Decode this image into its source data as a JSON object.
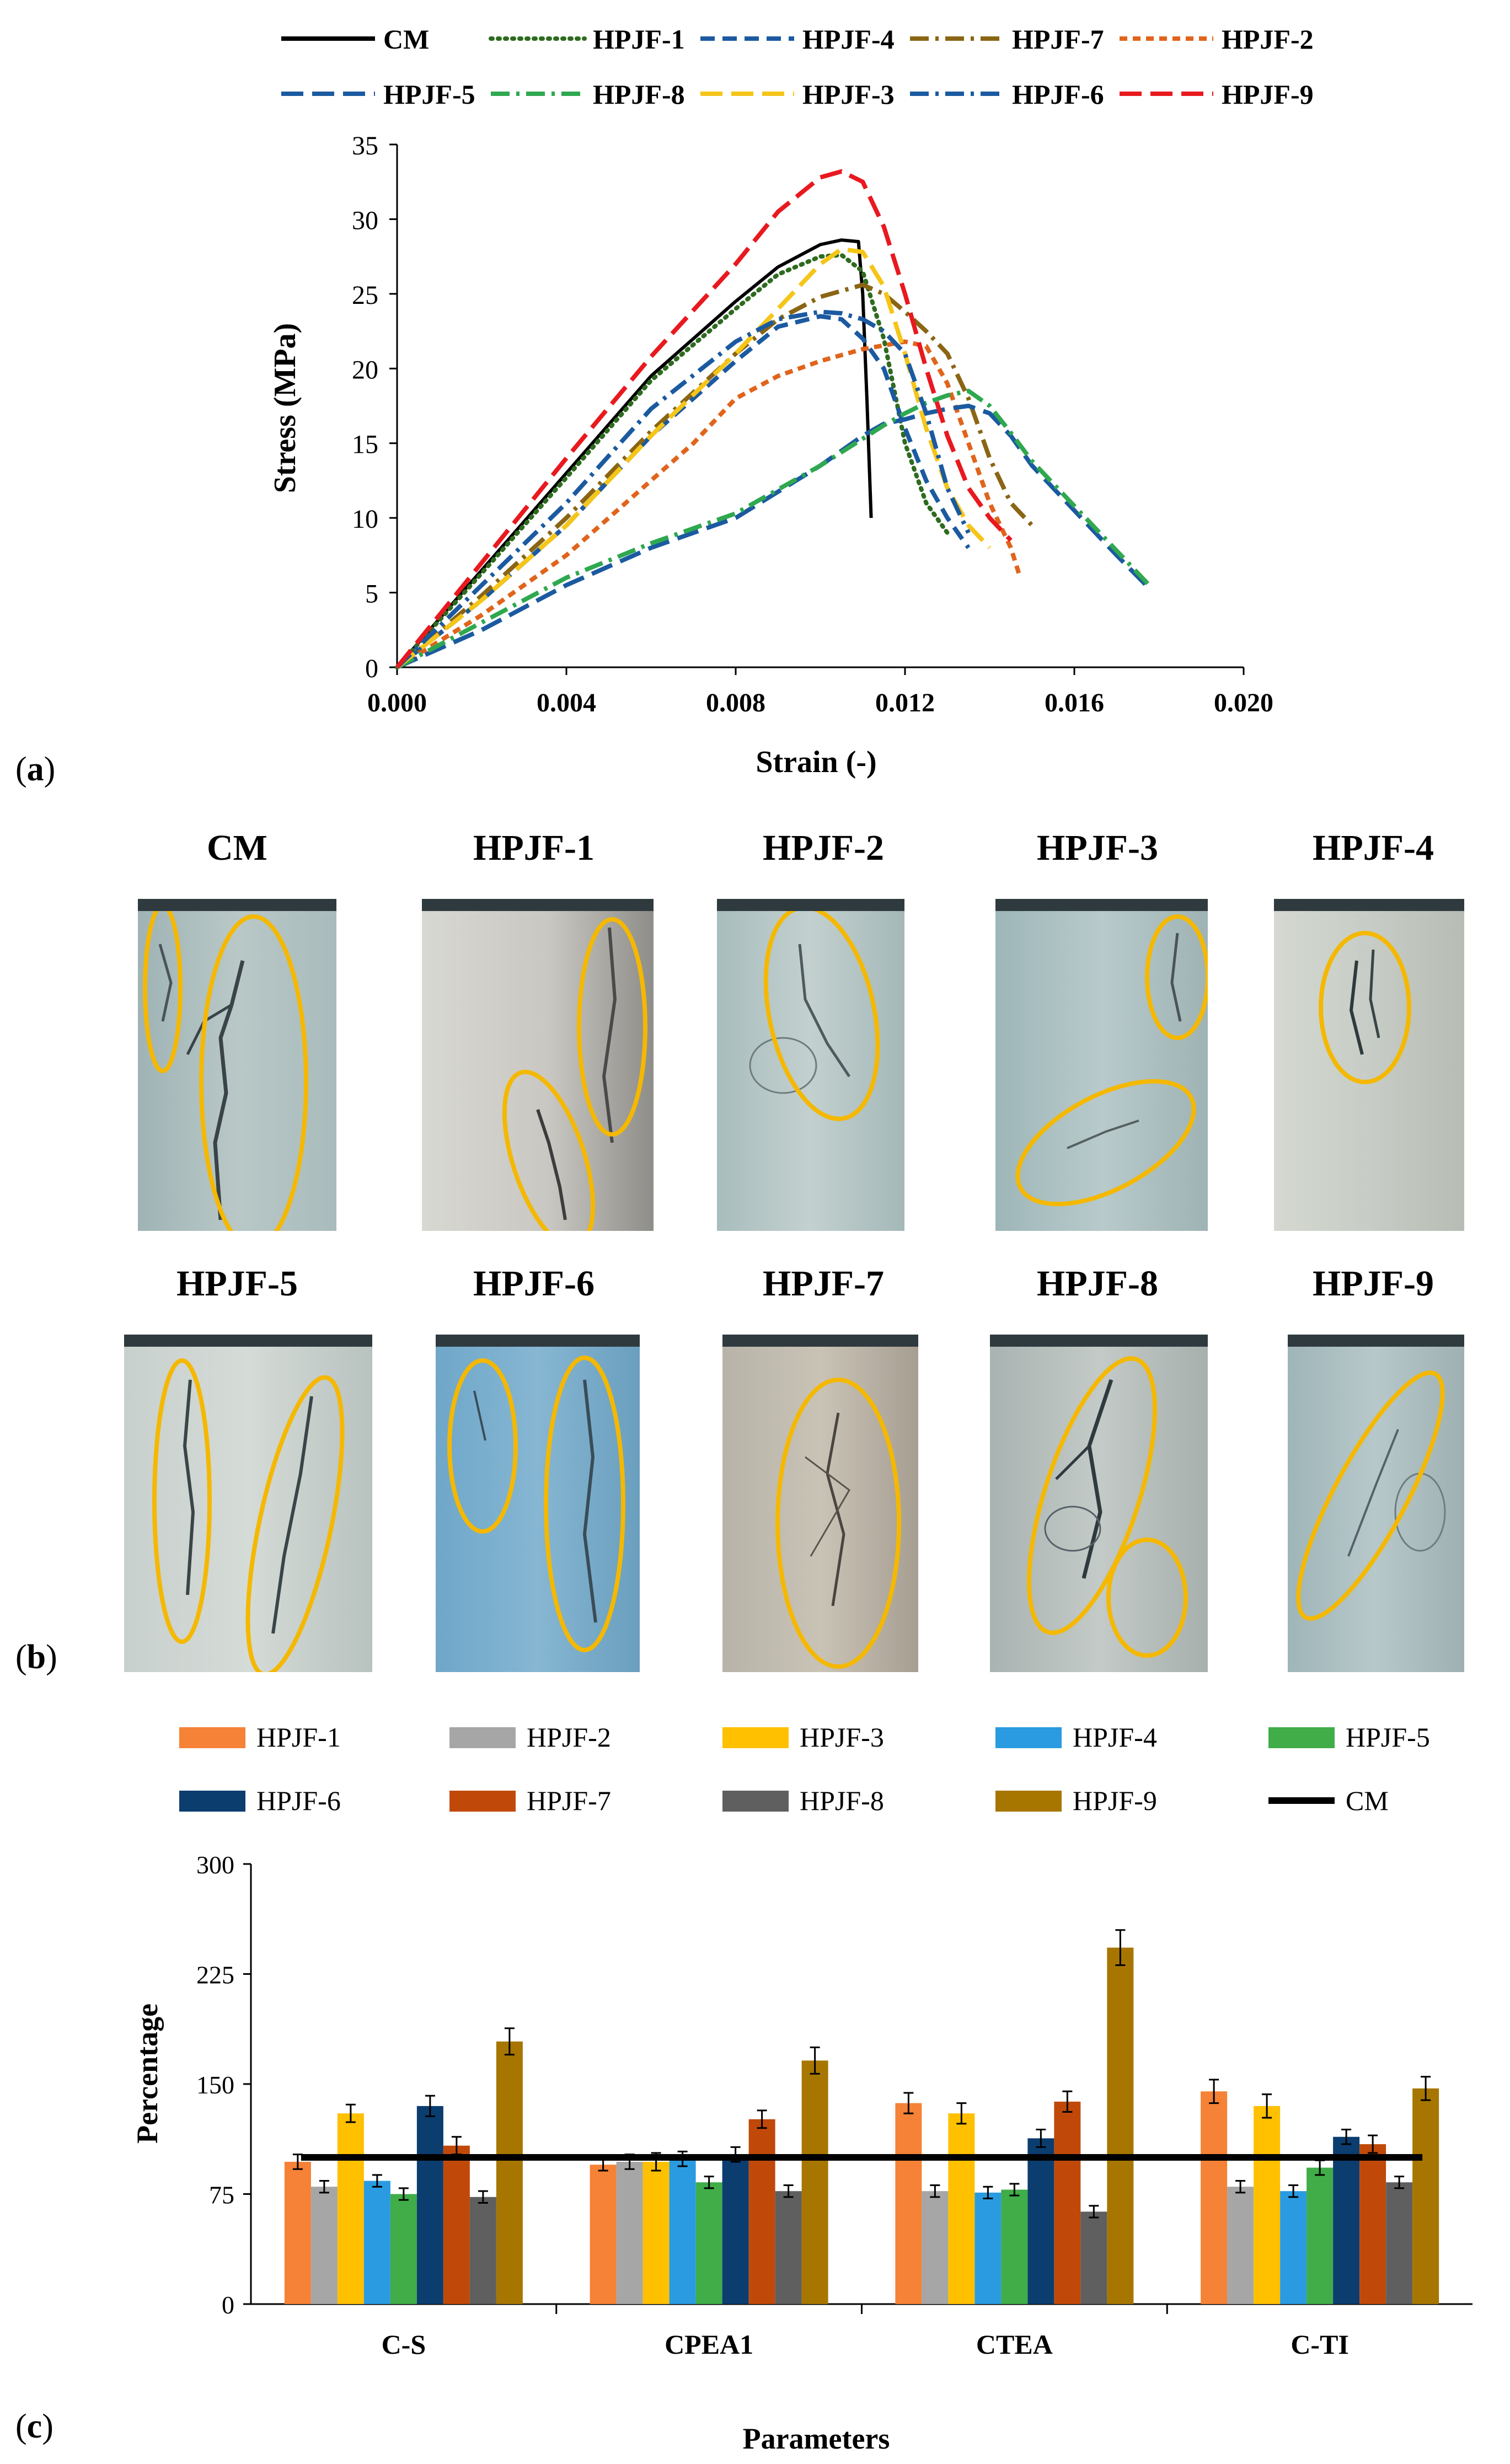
{
  "chart_data": [
    {
      "panel": "(a)",
      "type": "line",
      "xlabel": "Strain  (-)",
      "ylabel": "Stress (MPa)",
      "xlim": [
        0,
        0.02
      ],
      "ylim": [
        0,
        35
      ],
      "xticks": [
        "0.000",
        "0.004",
        "0.008",
        "0.012",
        "0.016",
        "0.020"
      ],
      "yticks": [
        "0",
        "5",
        "10",
        "15",
        "20",
        "25",
        "30",
        "35"
      ],
      "series": [
        {
          "name": "CM",
          "color": "#000000",
          "dash": "solid",
          "x": [
            0,
            0.002,
            0.004,
            0.006,
            0.008,
            0.009,
            0.01,
            0.0105,
            0.0109,
            0.011,
            0.0111,
            0.0112
          ],
          "y": [
            0,
            6.5,
            13,
            19.5,
            24.5,
            26.8,
            28.3,
            28.6,
            28.5,
            25,
            18,
            10
          ]
        },
        {
          "name": "HPJF-1",
          "color": "#2e6b1f",
          "dash": "dotted",
          "x": [
            0,
            0.002,
            0.004,
            0.006,
            0.008,
            0.009,
            0.01,
            0.0105,
            0.011,
            0.0115,
            0.012,
            0.0125,
            0.013
          ],
          "y": [
            0,
            6.3,
            12.7,
            19.2,
            24,
            26.3,
            27.5,
            27.6,
            26.5,
            22,
            15,
            11,
            9
          ]
        },
        {
          "name": "HPJF-4",
          "color": "#1b5aa0",
          "dash": "dashed",
          "x": [
            0,
            0.002,
            0.004,
            0.006,
            0.008,
            0.009,
            0.01,
            0.0105,
            0.011,
            0.0115,
            0.012,
            0.0125,
            0.013,
            0.0135
          ],
          "y": [
            0,
            4.5,
            9.5,
            15.5,
            20.5,
            22.8,
            23.5,
            23.3,
            22,
            20,
            16,
            12.5,
            10,
            8
          ]
        },
        {
          "name": "HPJF-7",
          "color": "#8a6514",
          "dash": "dashdot",
          "x": [
            0,
            0.002,
            0.004,
            0.006,
            0.008,
            0.009,
            0.01,
            0.011,
            0.0115,
            0.012,
            0.0125,
            0.013,
            0.0135,
            0.014,
            0.0145,
            0.015
          ],
          "y": [
            0,
            4.8,
            10,
            15.8,
            21,
            23.3,
            24.8,
            25.6,
            25,
            23.8,
            22.5,
            21,
            18,
            14,
            11,
            9.5
          ]
        },
        {
          "name": "HPJF-2",
          "color": "#e0641c",
          "dash": "shortdash",
          "x": [
            0,
            0.002,
            0.004,
            0.006,
            0.007,
            0.008,
            0.009,
            0.01,
            0.011,
            0.012,
            0.0125,
            0.013,
            0.0135,
            0.014,
            0.0145,
            0.0147
          ],
          "y": [
            0,
            3.5,
            7.5,
            12.5,
            15,
            18,
            19.5,
            20.5,
            21.3,
            21.8,
            21.5,
            19,
            15,
            11,
            8,
            6.2
          ]
        },
        {
          "name": "HPJF-5",
          "color": "#1b5aa0",
          "dash": "longdash",
          "x": [
            0,
            0.002,
            0.004,
            0.006,
            0.008,
            0.01,
            0.011,
            0.0115,
            0.012,
            0.0125,
            0.013,
            0.0135,
            0.014,
            0.0145,
            0.015,
            0.016,
            0.017,
            0.0178
          ],
          "y": [
            0,
            2.5,
            5.5,
            8,
            10,
            13.5,
            15.5,
            16.3,
            16.6,
            17,
            17.3,
            17.5,
            17,
            15.5,
            13.5,
            10.5,
            7.5,
            5.2
          ]
        },
        {
          "name": "HPJF-8",
          "color": "#2fa84f",
          "dash": "dashdot",
          "x": [
            0,
            0.002,
            0.004,
            0.006,
            0.008,
            0.01,
            0.011,
            0.0115,
            0.012,
            0.0125,
            0.013,
            0.0135,
            0.014,
            0.0145,
            0.015,
            0.016,
            0.017,
            0.0178
          ],
          "y": [
            0,
            3,
            6,
            8.3,
            10.3,
            13.5,
            15.3,
            16.2,
            17,
            17.7,
            18.2,
            18.5,
            17.5,
            15.7,
            13.8,
            10.8,
            7.8,
            5.4
          ]
        },
        {
          "name": "HPJF-3",
          "color": "#f5c518",
          "dash": "longdash",
          "x": [
            0,
            0.002,
            0.004,
            0.006,
            0.008,
            0.009,
            0.01,
            0.0105,
            0.011,
            0.0115,
            0.012,
            0.0125,
            0.013,
            0.0135,
            0.014
          ],
          "y": [
            0,
            4.5,
            9.5,
            15.5,
            21,
            24,
            27,
            28,
            27.8,
            25.5,
            21,
            16,
            12,
            9.5,
            8
          ]
        },
        {
          "name": "HPJF-6",
          "color": "#1b5aa0",
          "dash": "dashdot",
          "x": [
            0,
            0.002,
            0.004,
            0.006,
            0.008,
            0.009,
            0.01,
            0.0105,
            0.011,
            0.0115,
            0.012,
            0.0125,
            0.013,
            0.0135
          ],
          "y": [
            0,
            5.5,
            11,
            17.3,
            21.8,
            23.3,
            23.8,
            23.7,
            23.3,
            22.5,
            21,
            17,
            12,
            9
          ]
        },
        {
          "name": "HPJF-9",
          "color": "#e8191f",
          "dash": "longdash",
          "x": [
            0,
            0.002,
            0.004,
            0.006,
            0.008,
            0.009,
            0.01,
            0.0105,
            0.011,
            0.0115,
            0.012,
            0.0125,
            0.013,
            0.0135,
            0.014,
            0.0145
          ],
          "y": [
            0,
            7,
            14,
            20.8,
            27,
            30.5,
            32.8,
            33.2,
            32.5,
            29.5,
            25,
            20,
            15.5,
            12,
            10,
            8.5
          ]
        }
      ]
    },
    {
      "panel": "(c)",
      "type": "bar",
      "xlabel": "Parameters",
      "ylabel": "Percentage",
      "ylim": [
        0,
        300
      ],
      "yticks": [
        "0",
        "75",
        "150",
        "225",
        "300"
      ],
      "categories": [
        "C-S",
        "CPEA1",
        "CTEA",
        "C-TI"
      ],
      "reference_line": {
        "name": "CM",
        "value": 100,
        "color": "#000000"
      },
      "series": [
        {
          "name": "HPJF-1",
          "color": "#f58236",
          "values": [
            97,
            95,
            137,
            145
          ],
          "errors": [
            5,
            4,
            7,
            8
          ]
        },
        {
          "name": "HPJF-2",
          "color": "#a6a6a6",
          "values": [
            80,
            97,
            77,
            80
          ],
          "errors": [
            4,
            5,
            4,
            4
          ]
        },
        {
          "name": "HPJF-3",
          "color": "#ffc000",
          "values": [
            130,
            97,
            130,
            135
          ],
          "errors": [
            6,
            6,
            7,
            8
          ]
        },
        {
          "name": "HPJF-4",
          "color": "#2a9be0",
          "values": [
            84,
            99,
            76,
            77
          ],
          "errors": [
            4,
            5,
            4,
            4
          ]
        },
        {
          "name": "HPJF-5",
          "color": "#40ad48",
          "values": [
            75,
            83,
            78,
            93
          ],
          "errors": [
            4,
            4,
            4,
            5
          ]
        },
        {
          "name": "HPJF-6",
          "color": "#0b3d6f",
          "values": [
            135,
            102,
            113,
            114
          ],
          "errors": [
            7,
            5,
            6,
            5
          ]
        },
        {
          "name": "HPJF-7",
          "color": "#c0490a",
          "values": [
            108,
            126,
            138,
            109
          ],
          "errors": [
            6,
            6,
            7,
            6
          ]
        },
        {
          "name": "HPJF-8",
          "color": "#5f5f5f",
          "values": [
            73,
            77,
            63,
            83
          ],
          "errors": [
            4,
            4,
            4,
            4
          ]
        },
        {
          "name": "HPJF-9",
          "color": "#a77600",
          "values": [
            179,
            166,
            243,
            147
          ],
          "errors": [
            9,
            9,
            12,
            8
          ]
        }
      ]
    }
  ],
  "panel_labels": {
    "a": "a",
    "b": "b",
    "c": "c"
  },
  "specimens": [
    "CM",
    "HPJF-1",
    "HPJF-2",
    "HPJF-3",
    "HPJF-4",
    "HPJF-5",
    "HPJF-6",
    "HPJF-7",
    "HPJF-8",
    "HPJF-9"
  ],
  "colors": {
    "highlight_ellipse": "#f5b800",
    "specimen_cap": "#2f3a3f"
  }
}
